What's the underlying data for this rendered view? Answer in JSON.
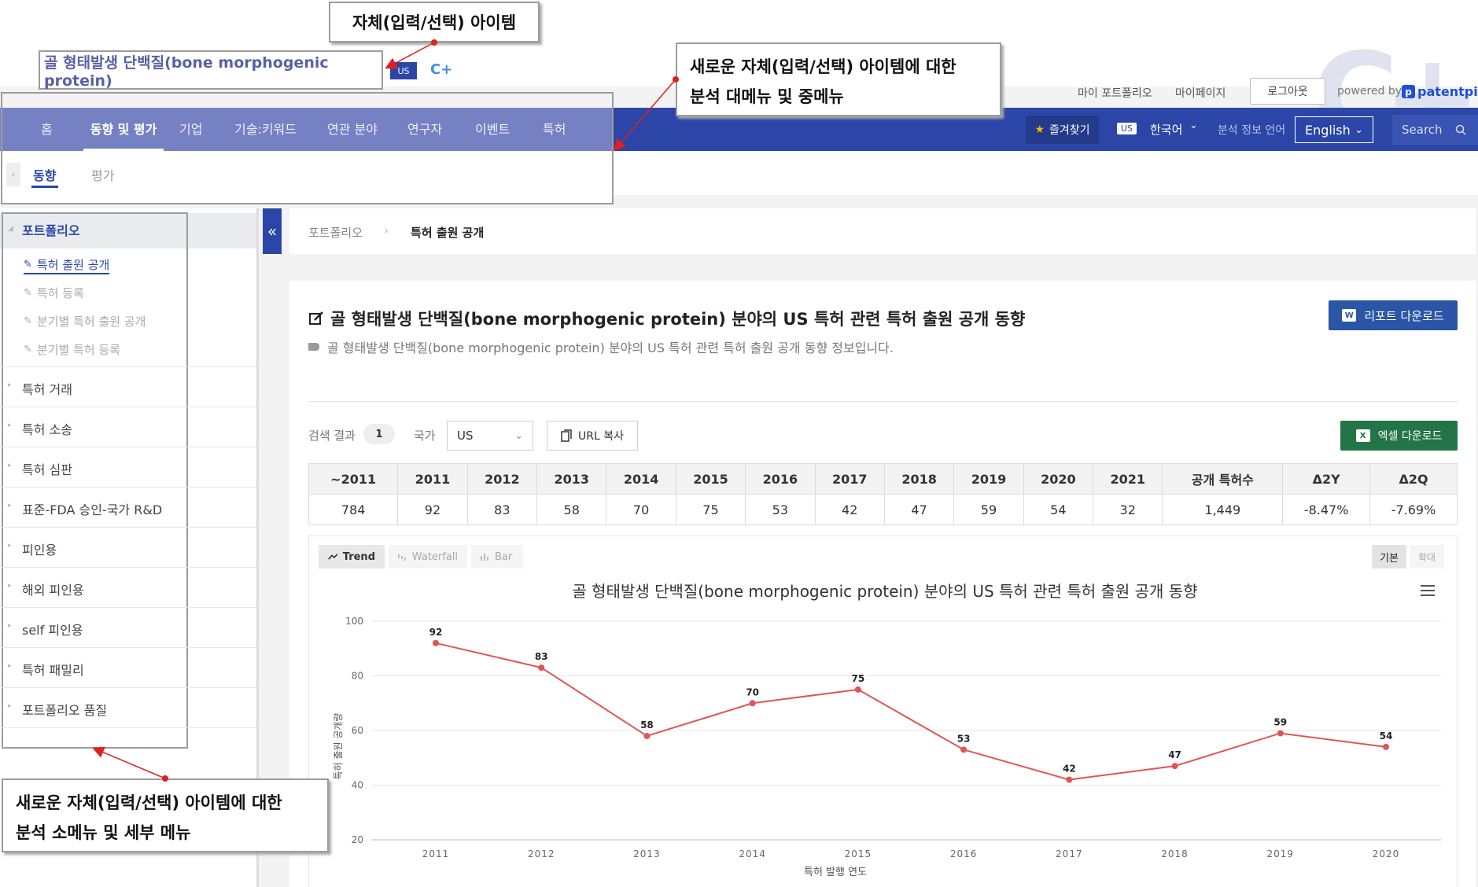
{
  "item": {
    "name": "골 형태발생 단백질(bone morphogenic protein)",
    "country_badge": "US",
    "logo_small": "C+"
  },
  "brand_mark": "C+",
  "header": {
    "my_portfolio": "마이 포트폴리오",
    "my_page": "마이페이지",
    "logout": "로그아웃",
    "powered_by": "powered by",
    "brand": "patentpia",
    "brand_icon": "p"
  },
  "nav": {
    "items": [
      "홈",
      "동향 및 평가",
      "기업",
      "기술:키워드",
      "연관 분야",
      "연구자",
      "이벤트",
      "특허"
    ],
    "active_index": 1,
    "favorites": "즐겨찾기",
    "lang_badge": "US",
    "lang": "한국어",
    "analysis_lang_label": "분석 정보 언어",
    "analysis_lang_value": "English",
    "search_placeholder": "Search"
  },
  "subnav": {
    "items": [
      "동향",
      "평가"
    ],
    "active_index": 0
  },
  "sidebar": {
    "portfolio": "포트폴리오",
    "portfolio_items": [
      "특허 출원 공개",
      "특허 등록",
      "분기별 특허 출원 공개",
      "분기별 특허 등록"
    ],
    "sections": [
      "특허 거래",
      "특허 소송",
      "특허 심판",
      "표준-FDA 승인-국가 R&D",
      "피인용",
      "해외 피인용",
      "self 피인용",
      "특허 패밀리",
      "포트폴리오 품질"
    ]
  },
  "breadcrumb": {
    "root": "포트폴리오",
    "sep": "›",
    "current": "특허 출원 공개"
  },
  "main": {
    "title": "골 형태발생 단백질(bone morphogenic protein) 분야의 US 특허 관련 특허 출원 공개 동향",
    "subtitle": "골 형태발생 단백질(bone morphogenic protein) 분야의 US 특허 관련 특허 출원 공개 동향 정보입니다.",
    "report_download": "리포트 다운로드",
    "search_result_label": "검색 결과",
    "search_result_count": "1",
    "country_label": "국가",
    "country_value": "US",
    "url_copy": "URL 복사",
    "excel_download": "엑셀 다운로드"
  },
  "table": {
    "headers": [
      "~2011",
      "2011",
      "2012",
      "2013",
      "2014",
      "2015",
      "2016",
      "2017",
      "2018",
      "2019",
      "2020",
      "2021",
      "공개 특허수",
      "Δ2Y",
      "Δ2Q"
    ],
    "row": [
      "784",
      "92",
      "83",
      "58",
      "70",
      "75",
      "53",
      "42",
      "47",
      "59",
      "54",
      "32",
      "1,449",
      "-8.47%",
      "-7.69%"
    ]
  },
  "chart_tabs": {
    "trend": "Trend",
    "waterfall": "Waterfall",
    "bar": "Bar",
    "basic": "기본",
    "zoom": "확대"
  },
  "chart_data": {
    "type": "line",
    "title": "골 형태발생 단백질(bone morphogenic protein) 분야의 US 특허 관련 특허 출원 공개 동향",
    "xlabel": "특허 발행 연도",
    "ylabel": "특허 출원 공개량",
    "x": [
      "2011",
      "2012",
      "2013",
      "2014",
      "2015",
      "2016",
      "2017",
      "2018",
      "2019",
      "2020"
    ],
    "values": [
      92,
      83,
      58,
      70,
      75,
      53,
      42,
      47,
      59,
      54
    ],
    "yticks": [
      20,
      40,
      60,
      80,
      100
    ],
    "ylim": [
      20,
      100
    ],
    "grid": true,
    "line_color": "#e05555"
  },
  "annotations": {
    "top": "자체(입력/선택) 아이템",
    "mid_line1": "새로운 자체(입력/선택) 아이템에 대한",
    "mid_line2": "분석 대메뉴 및 중메뉴",
    "bottom_line1": "새로운 자체(입력/선택) 아이템에 대한",
    "bottom_line2": "분석 소메뉴 및 세부 메뉴"
  }
}
